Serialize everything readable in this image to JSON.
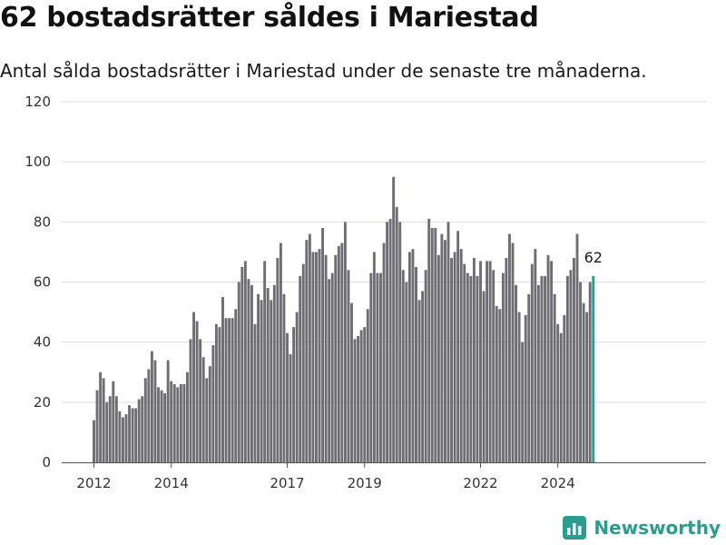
{
  "header": {
    "title": "62 bostadsrätter såldes i Mariestad",
    "subtitle": "Antal sålda bostadsrätter i Mariestad under de senaste tre månaderna."
  },
  "brand": {
    "name": "Newsworthy",
    "icon": "newsworthy-logo-icon"
  },
  "colors": {
    "bar": "#6e6d72",
    "highlight": "#2a9d8f",
    "grid": "#dddddd",
    "axis": "#555555"
  },
  "chart_data": {
    "type": "bar",
    "xlabel": "",
    "ylabel": "",
    "ylim": [
      0,
      120
    ],
    "yticks": [
      0,
      20,
      40,
      60,
      80,
      100,
      120
    ],
    "xticks": [
      "2012",
      "2014",
      "2017",
      "2019",
      "2022",
      "2024"
    ],
    "grid": true,
    "start_month": "2012-01",
    "highlight_label": "62",
    "values": [
      14,
      24,
      30,
      28,
      20,
      22,
      27,
      22,
      17,
      15,
      16,
      19,
      18,
      18,
      21,
      22,
      28,
      31,
      37,
      34,
      25,
      24,
      23,
      34,
      27,
      26,
      25,
      26,
      26,
      30,
      41,
      50,
      47,
      41,
      35,
      28,
      32,
      39,
      46,
      45,
      55,
      48,
      48,
      48,
      51,
      60,
      65,
      67,
      61,
      59,
      46,
      56,
      54,
      67,
      58,
      54,
      59,
      68,
      73,
      56,
      43,
      36,
      45,
      50,
      62,
      66,
      74,
      76,
      70,
      70,
      71,
      78,
      69,
      61,
      63,
      69,
      72,
      73,
      80,
      64,
      53,
      41,
      42,
      44,
      45,
      51,
      63,
      70,
      63,
      63,
      73,
      80,
      81,
      95,
      85,
      80,
      64,
      60,
      70,
      71,
      65,
      54,
      57,
      64,
      81,
      78,
      78,
      69,
      76,
      74,
      80,
      68,
      70,
      77,
      71,
      66,
      63,
      62,
      68,
      62,
      67,
      57,
      67,
      67,
      64,
      52,
      51,
      63,
      68,
      76,
      73,
      59,
      50,
      40,
      49,
      56,
      66,
      71,
      59,
      62,
      62,
      69,
      67,
      56,
      46,
      43,
      49,
      62,
      64,
      68,
      76,
      60,
      53,
      50,
      60,
      62
    ]
  }
}
